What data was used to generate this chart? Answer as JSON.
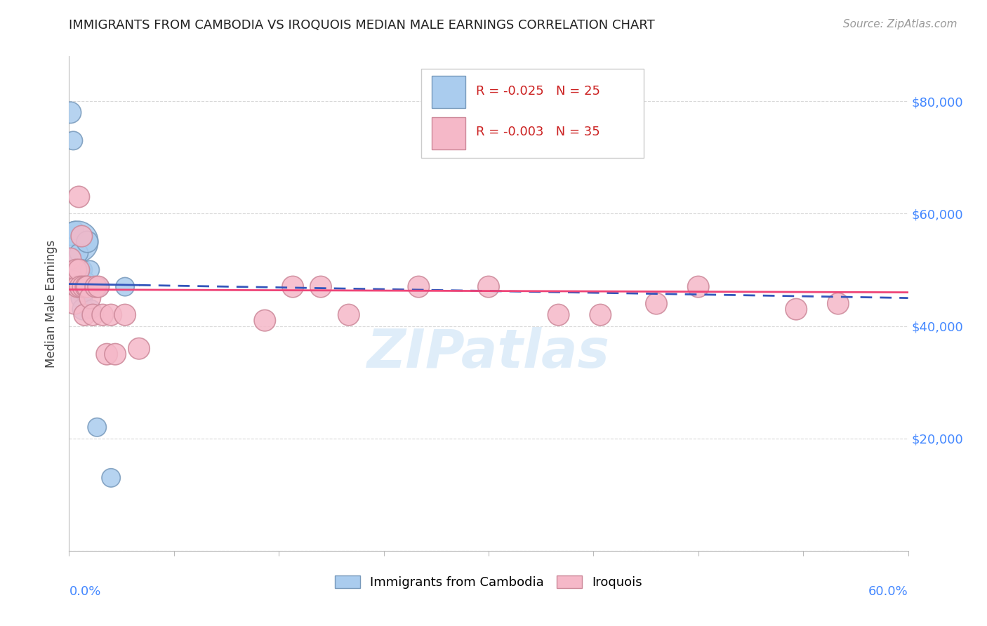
{
  "title": "IMMIGRANTS FROM CAMBODIA VS IROQUOIS MEDIAN MALE EARNINGS CORRELATION CHART",
  "source": "Source: ZipAtlas.com",
  "ylabel": "Median Male Earnings",
  "yticks": [
    0,
    20000,
    40000,
    60000,
    80000
  ],
  "ytick_labels": [
    "",
    "$20,000",
    "$40,000",
    "$60,000",
    "$80,000"
  ],
  "xlim": [
    0.0,
    0.6
  ],
  "ylim": [
    0,
    88000
  ],
  "background_color": "#ffffff",
  "grid_color": "#d8d8d8",
  "blue_color": "#aaccee",
  "blue_edge_color": "#7799bb",
  "pink_color": "#f5b8c8",
  "pink_edge_color": "#cc8899",
  "trendline_blue": "#3355bb",
  "trendline_pink": "#ee4477",
  "legend_R_blue": "-0.025",
  "legend_N_blue": "25",
  "legend_R_pink": "-0.003",
  "legend_N_pink": "35",
  "cambodia_x": [
    0.001,
    0.003,
    0.004,
    0.005,
    0.005,
    0.006,
    0.006,
    0.007,
    0.007,
    0.007,
    0.008,
    0.008,
    0.009,
    0.01,
    0.01,
    0.011,
    0.012,
    0.013,
    0.015,
    0.016,
    0.02,
    0.022,
    0.03,
    0.04,
    0.001
  ],
  "cambodia_y": [
    56000,
    73000,
    57000,
    52000,
    47000,
    55000,
    50000,
    48000,
    47000,
    53000,
    50000,
    46000,
    45000,
    50000,
    43000,
    46000,
    48000,
    55000,
    50000,
    43000,
    22000,
    47000,
    13000,
    47000,
    78000
  ],
  "cambodia_size": [
    60,
    60,
    60,
    60,
    60,
    300,
    80,
    60,
    60,
    60,
    80,
    60,
    80,
    60,
    80,
    60,
    60,
    80,
    60,
    60,
    60,
    60,
    60,
    60,
    80
  ],
  "iroquois_x": [
    0.001,
    0.003,
    0.004,
    0.005,
    0.006,
    0.007,
    0.007,
    0.008,
    0.009,
    0.01,
    0.011,
    0.012,
    0.013,
    0.015,
    0.017,
    0.019,
    0.021,
    0.024,
    0.027,
    0.03,
    0.033,
    0.04,
    0.05,
    0.14,
    0.16,
    0.18,
    0.2,
    0.25,
    0.3,
    0.35,
    0.38,
    0.42,
    0.45,
    0.52,
    0.55
  ],
  "iroquois_y": [
    52000,
    48000,
    44000,
    50000,
    47000,
    63000,
    50000,
    47000,
    56000,
    47000,
    42000,
    47000,
    47000,
    45000,
    42000,
    47000,
    47000,
    42000,
    35000,
    42000,
    35000,
    42000,
    36000,
    41000,
    47000,
    47000,
    42000,
    47000,
    47000,
    42000,
    42000,
    44000,
    47000,
    43000,
    44000
  ],
  "iroquois_size": [
    80,
    80,
    80,
    80,
    80,
    80,
    80,
    80,
    80,
    80,
    80,
    80,
    80,
    80,
    80,
    80,
    80,
    80,
    80,
    80,
    80,
    80,
    80,
    80,
    80,
    80,
    80,
    80,
    80,
    80,
    80,
    80,
    80,
    80,
    80
  ]
}
